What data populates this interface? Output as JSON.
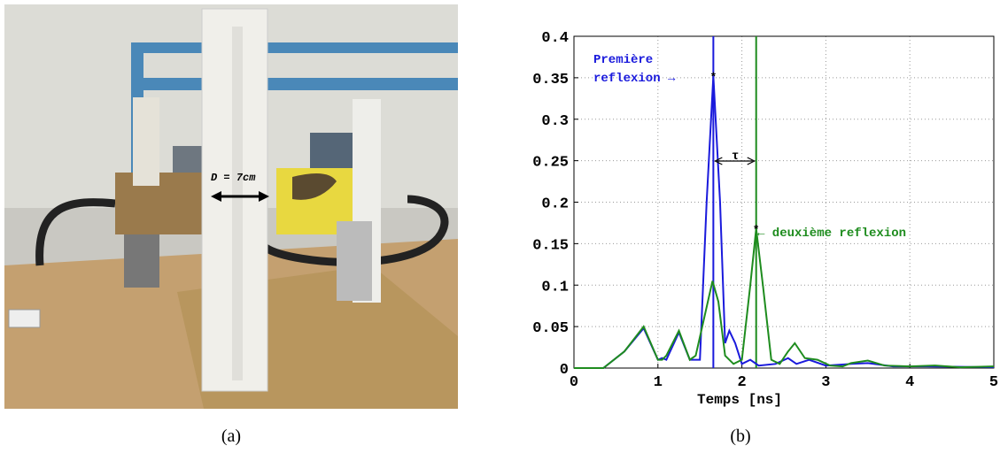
{
  "photo": {
    "label": "D = 7cm",
    "caption": "(a)"
  },
  "chart_data": {
    "type": "line",
    "caption": "(b)",
    "xlabel": "Temps [ns]",
    "xlim": [
      0,
      5
    ],
    "xticks": [
      0,
      1,
      2,
      3,
      4,
      5
    ],
    "ylim": [
      0,
      0.4
    ],
    "yticks": [
      0,
      0.05,
      0.1,
      0.15,
      0.2,
      0.25,
      0.3,
      0.35,
      0.4
    ],
    "grid": true,
    "series": [
      {
        "color": "#1a1adc",
        "x": [
          0,
          0.35,
          0.6,
          0.83,
          1.0,
          1.05,
          1.1,
          1.25,
          1.38,
          1.5,
          1.58,
          1.66,
          1.74,
          1.8,
          1.85,
          1.92,
          2.0,
          2.1,
          2.2,
          2.4,
          2.55,
          2.65,
          2.8,
          3.0,
          3.3,
          3.5,
          3.8,
          4.2,
          5
        ],
        "values": [
          0,
          0,
          0.02,
          0.048,
          0.01,
          0.012,
          0.01,
          0.043,
          0.01,
          0.01,
          0.2,
          0.352,
          0.2,
          0.03,
          0.045,
          0.03,
          0.005,
          0.01,
          0.003,
          0.005,
          0.012,
          0.005,
          0.01,
          0.003,
          0.005,
          0.006,
          0.002,
          0.002,
          0.001
        ]
      },
      {
        "color": "#1e8c1e",
        "x": [
          0,
          0.35,
          0.6,
          0.83,
          1.0,
          1.05,
          1.1,
          1.25,
          1.38,
          1.45,
          1.55,
          1.65,
          1.72,
          1.8,
          1.9,
          2.0,
          2.1,
          2.17,
          2.25,
          2.35,
          2.45,
          2.55,
          2.63,
          2.75,
          2.9,
          3.05,
          3.2,
          3.3,
          3.5,
          3.7,
          4.0,
          4.3,
          4.6,
          5
        ],
        "values": [
          0,
          0,
          0.02,
          0.05,
          0.01,
          0.01,
          0.015,
          0.045,
          0.01,
          0.015,
          0.06,
          0.105,
          0.08,
          0.015,
          0.005,
          0.01,
          0.1,
          0.168,
          0.1,
          0.01,
          0.005,
          0.02,
          0.03,
          0.012,
          0.01,
          0.003,
          0.002,
          0.006,
          0.009,
          0.003,
          0.002,
          0.003,
          0.001,
          0.002
        ]
      }
    ],
    "vlines": [
      1.66,
      2.17
    ],
    "annotations": [
      "Première",
      "reflexion →",
      "τ",
      "← deuxième reflexion"
    ]
  }
}
